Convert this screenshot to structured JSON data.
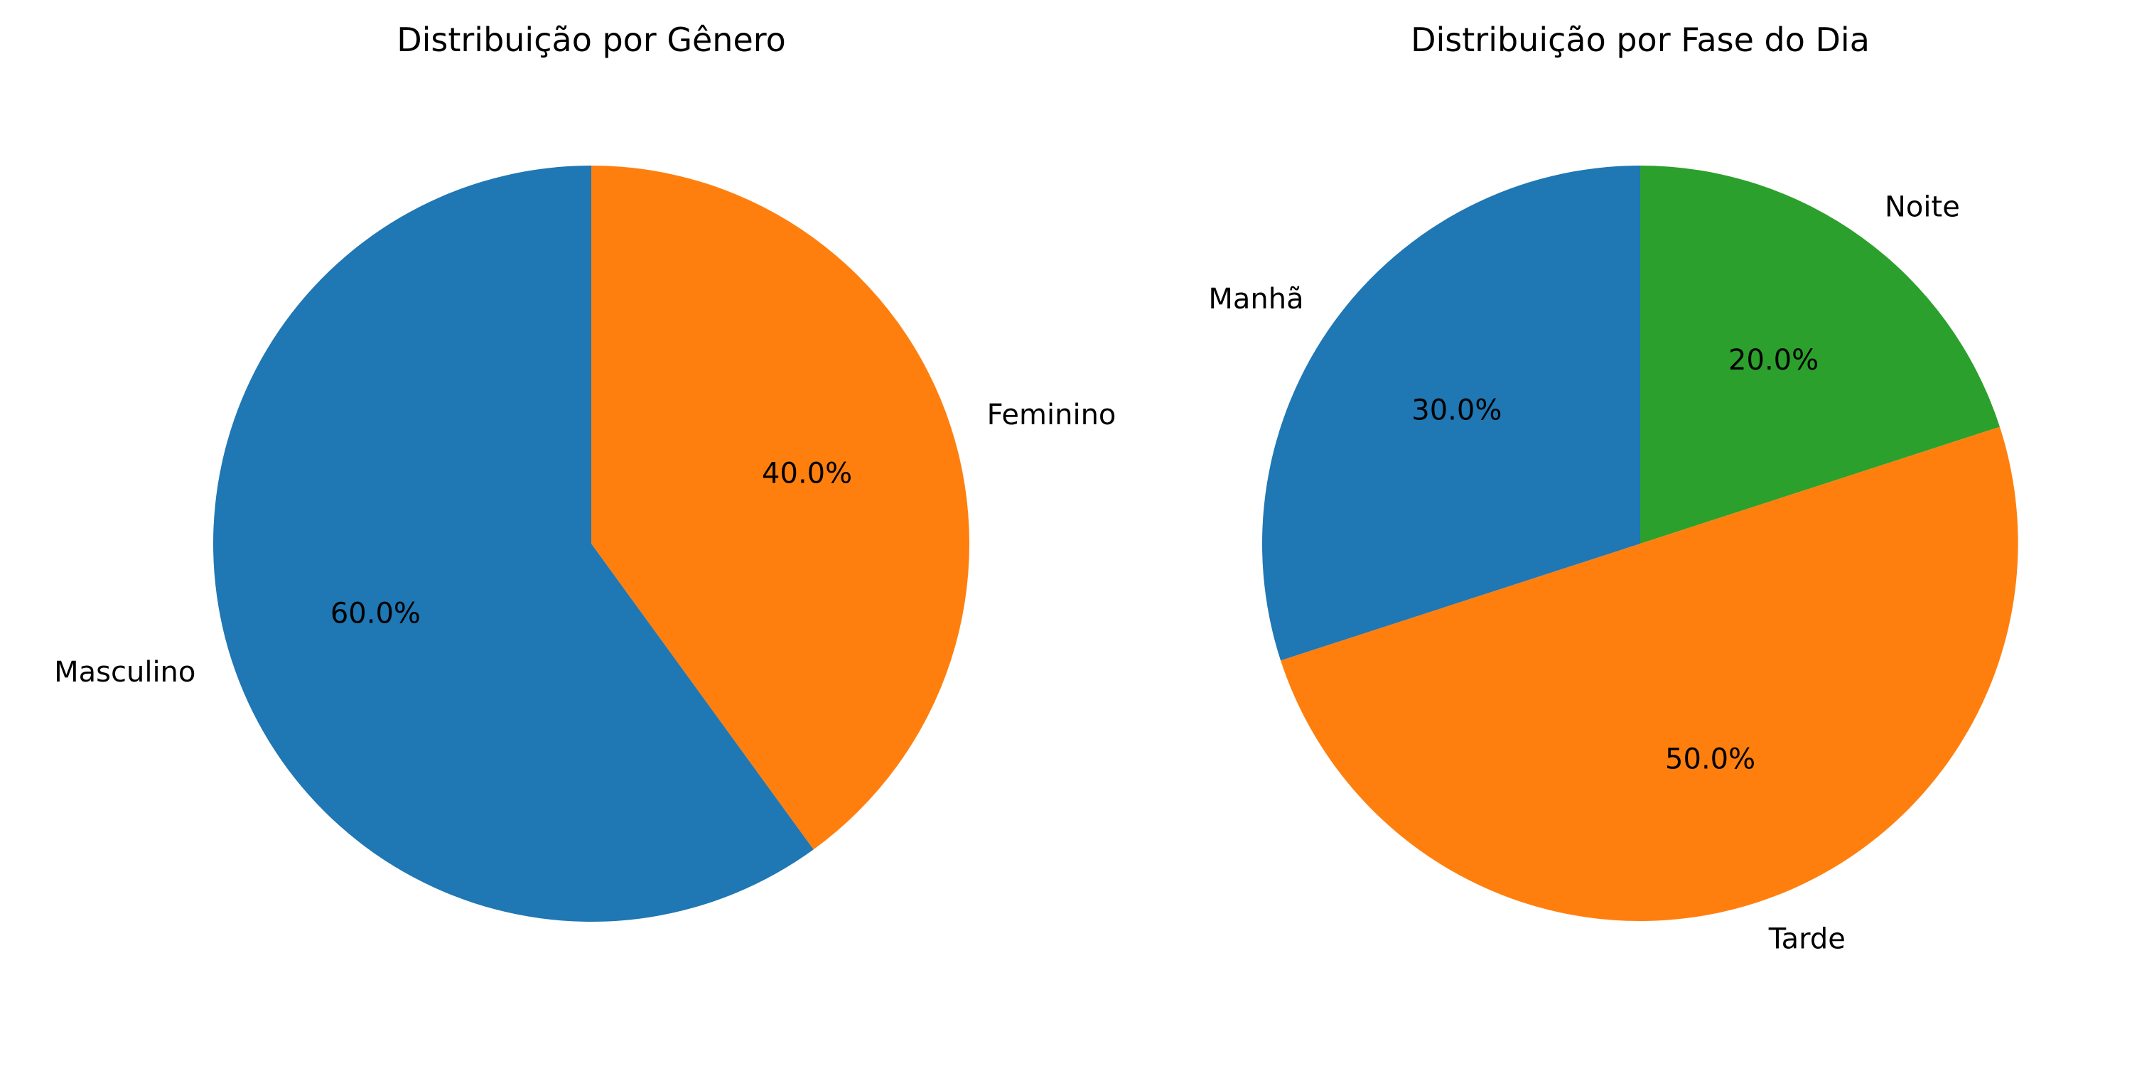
{
  "chart_data": [
    {
      "type": "pie",
      "title": "Distribuição por Gênero",
      "labels": [
        "Masculino",
        "Feminino"
      ],
      "values": [
        60,
        40
      ],
      "value_labels": [
        "60.0%",
        "40.0%"
      ],
      "colors": [
        "#1f77b4",
        "#ff7f0e"
      ],
      "start_angle_deg": 90,
      "direction": "counterclockwise"
    },
    {
      "type": "pie",
      "title": "Distribuição por Fase do Dia",
      "labels": [
        "Manhã",
        "Tarde",
        "Noite"
      ],
      "values": [
        30,
        50,
        20
      ],
      "value_labels": [
        "30.0%",
        "50.0%",
        "20.0%"
      ],
      "colors": [
        "#1f77b4",
        "#ff7f0e",
        "#2ca02c"
      ],
      "start_angle_deg": 90,
      "direction": "counterclockwise"
    }
  ]
}
